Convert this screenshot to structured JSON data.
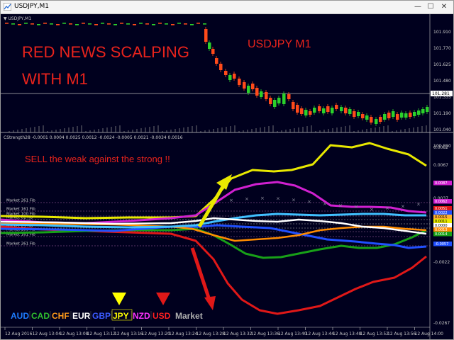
{
  "window": {
    "title": "USDJPY,M1",
    "buttons": {
      "minimize": "—",
      "maximize": "☐",
      "close": "✕"
    }
  },
  "price_panel": {
    "header": "▼ USDJPY,M1",
    "symbol_label": "USDJPY M1",
    "headline_line1": "RED NEWS SCALPING",
    "headline_line2": "WITH M1",
    "price_ticks": [
      "101.910",
      "101.770",
      "101.625",
      "101.480",
      "101.335",
      "101.190",
      "101.040",
      "100.890"
    ],
    "current_price": "101.281",
    "colors": {
      "bull": "#2bd12b",
      "bear": "#ff4a1a",
      "headline": "#e8231c"
    }
  },
  "indicator_panel": {
    "header": "CStrength28 -0.0001 0.0004 0.0025 0.0012 -0.0024 -0.0005 0.0021 -0.0034 0.0016",
    "instruction": "SELL the weak against the strong !!",
    "fib_labels": [
      "Market 261 Fib",
      "Market 161 Fib",
      "Market 100 Fib",
      "Market 61 Fib",
      "Market 38 Fib",
      "Market 23 Fib",
      "Market 100 Fib",
      "Market 161 Fib",
      "Market 261 Fib"
    ],
    "scale_ticks": [
      "0.0082",
      "0.0067",
      "0.0052",
      "0.0037",
      "0.0022",
      "0.0007",
      "-0.0008",
      "-0.0022",
      "-0.0267"
    ],
    "value_badges": [
      {
        "text": "0.0062",
        "color": "#d020d0"
      },
      {
        "text": "0.0051",
        "color": "#e01818"
      },
      {
        "text": "0.0022",
        "color": "#2050ff"
      },
      {
        "text": "0.0015",
        "color": "#ffb030"
      },
      {
        "text": "0.0011",
        "color": "#e8e800"
      },
      {
        "text": "0.0000",
        "color": "#ffffff"
      },
      {
        "text": "0.0013",
        "color": "#ff8c00"
      },
      {
        "text": "0.0014",
        "color": "#18a018"
      },
      {
        "text": "-0.0057",
        "color": "#2050ff"
      },
      {
        "text": "0.0087",
        "color": "#d020d0"
      }
    ],
    "currencies": [
      {
        "code": "AUD",
        "color": "#1e7cff"
      },
      {
        "code": "CAD",
        "color": "#2fbf2f"
      },
      {
        "code": "CHF",
        "color": "#ff9a1a"
      },
      {
        "code": "EUR",
        "color": "#ffffff"
      },
      {
        "code": "GBP",
        "color": "#3b5bff"
      },
      {
        "code": "JPY",
        "color": "#ffff00"
      },
      {
        "code": "NZD",
        "color": "#ff33ff"
      },
      {
        "code": "USD",
        "color": "#ff2020"
      }
    ],
    "market_label": "Market",
    "arrow_colors": {
      "up": "#e8e800",
      "down": "#e01818"
    }
  },
  "time_axis": [
    "12 Aug 2016",
    "12 Aug 13:04",
    "12 Aug 13:08",
    "12 Aug 13:12",
    "12 Aug 13:16",
    "12 Aug 13:20",
    "12 Aug 13:24",
    "12 Aug 13:28",
    "12 Aug 13:32",
    "12 Aug 13:36",
    "12 Aug 13:40",
    "12 Aug 13:44",
    "12 Aug 13:48",
    "12 Aug 13:52",
    "12 Aug 13:56",
    "12 Aug 14:00"
  ]
}
